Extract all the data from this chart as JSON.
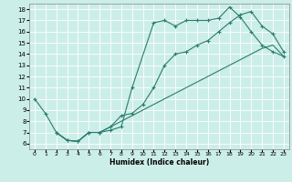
{
  "title": "",
  "xlabel": "Humidex (Indice chaleur)",
  "background_color": "#cceee8",
  "line_color": "#2a7d6e",
  "grid_color": "#ffffff",
  "xlim": [
    -0.5,
    23.5
  ],
  "ylim": [
    5.5,
    18.5
  ],
  "yticks": [
    6,
    7,
    8,
    9,
    10,
    11,
    12,
    13,
    14,
    15,
    16,
    17,
    18
  ],
  "xticks": [
    0,
    1,
    2,
    3,
    4,
    5,
    6,
    7,
    8,
    9,
    10,
    11,
    12,
    13,
    14,
    15,
    16,
    17,
    18,
    19,
    20,
    21,
    22,
    23
  ],
  "line1_x": [
    0,
    1,
    2,
    3,
    4,
    5,
    6,
    7,
    8,
    9,
    11,
    12,
    13,
    14,
    15,
    16,
    17,
    18,
    19,
    20,
    21,
    22,
    23
  ],
  "line1_y": [
    10,
    8.7,
    7.0,
    6.3,
    6.2,
    7.0,
    7.0,
    7.2,
    7.5,
    11.0,
    16.8,
    17.0,
    16.5,
    17.0,
    17.0,
    17.0,
    17.2,
    18.2,
    17.3,
    16.0,
    14.8,
    14.2,
    13.8
  ],
  "line2_x": [
    2,
    3,
    4,
    5,
    6,
    7,
    8,
    9,
    10,
    11,
    12,
    13,
    14,
    15,
    16,
    17,
    18,
    19,
    20,
    21,
    22,
    23
  ],
  "line2_y": [
    7.0,
    6.3,
    6.2,
    7.0,
    7.0,
    7.5,
    8.5,
    8.7,
    9.5,
    11.0,
    13.0,
    14.0,
    14.2,
    14.8,
    15.2,
    16.0,
    16.8,
    17.5,
    17.8,
    16.5,
    15.8,
    14.2
  ],
  "line3_x": [
    2,
    3,
    4,
    5,
    6,
    7,
    8,
    9,
    10,
    11,
    12,
    13,
    14,
    15,
    16,
    17,
    18,
    19,
    20,
    21,
    22,
    23
  ],
  "line3_y": [
    7.0,
    6.3,
    6.2,
    7.0,
    7.0,
    7.5,
    8.0,
    8.5,
    9.0,
    9.5,
    10.0,
    10.5,
    11.0,
    11.5,
    12.0,
    12.5,
    13.0,
    13.5,
    14.0,
    14.5,
    14.8,
    13.8
  ]
}
